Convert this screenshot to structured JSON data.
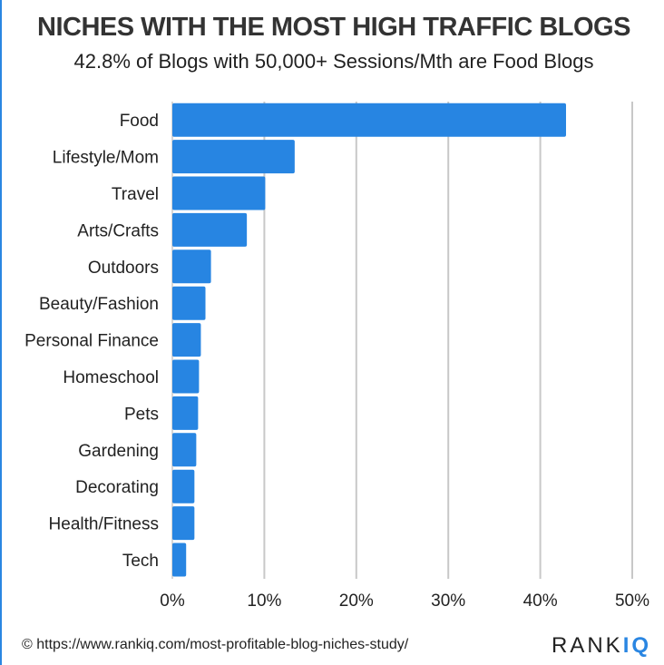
{
  "chart_data": {
    "type": "bar",
    "orientation": "horizontal",
    "title": "NICHES WITH THE MOST HIGH TRAFFIC BLOGS",
    "subtitle": "42.8% of Blogs with 50,000+ Sessions/Mth are Food Blogs",
    "categories": [
      "Food",
      "Lifestyle/Mom",
      "Travel",
      "Arts/Crafts",
      "Outdoors",
      "Beauty/Fashion",
      "Personal Finance",
      "Homeschool",
      "Pets",
      "Gardening",
      "Decorating",
      "Health/Fitness",
      "Tech"
    ],
    "values": [
      42.8,
      13.3,
      10.1,
      8.1,
      4.2,
      3.6,
      3.1,
      2.9,
      2.8,
      2.6,
      2.4,
      2.4,
      1.5
    ],
    "xlabel": "",
    "ylabel": "",
    "xlim": [
      0,
      50
    ],
    "xticks": [
      "0%",
      "10%",
      "20%",
      "30%",
      "40%",
      "50%"
    ],
    "grid": true,
    "bar_color": "#2785e2"
  },
  "footer": {
    "copyright_icon": "©",
    "url": "https://www.rankiq.com/most-profitable-blog-niches-study/"
  },
  "logo": {
    "text1": "RANK",
    "text2": "IQ"
  }
}
